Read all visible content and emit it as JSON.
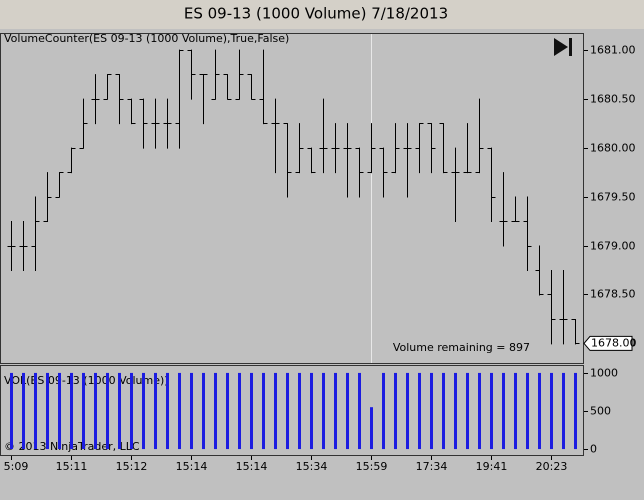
{
  "chart_data": [
    {
      "type": "ohlc",
      "title": "ES 09-13 (1000 Volume)  7/18/2013",
      "indicator": "VolumeCounter(ES 09-13 (1000 Volume),True,False)",
      "annotation": "Volume remaining = 897",
      "last_price": {
        "value": 1678,
        "label": "1678.00"
      },
      "color": "#000000",
      "categories": [
        "5:09",
        null,
        null,
        null,
        null,
        "15:11",
        null,
        null,
        null,
        null,
        "15:12",
        null,
        null,
        null,
        null,
        "15:14",
        null,
        null,
        null,
        null,
        "15:14",
        null,
        null,
        null,
        null,
        "15:34",
        null,
        null,
        null,
        null,
        "15:59",
        null,
        null,
        null,
        null,
        "17:34",
        null,
        null,
        null,
        null,
        "19:41",
        null,
        null,
        null,
        null,
        "20:23",
        null,
        null
      ],
      "open": [
        1679,
        1679,
        1679,
        1679.25,
        1679.5,
        1679.75,
        1680,
        1680.5,
        1680.5,
        1680.75,
        1680.5,
        1680.5,
        1680.25,
        1680.25,
        1680.25,
        1681,
        1680.75,
        1680.5,
        1680.75,
        1680.5,
        1680.75,
        1680.5,
        1680.25,
        1680.25,
        1679.75,
        1680,
        1680,
        1680,
        1680,
        1680,
        1679.75,
        1680,
        1679.75,
        1680,
        1680,
        1680.25,
        1680.25,
        1679.75,
        1679.75,
        1679.75,
        1680,
        1679.25,
        1679.25,
        1679.25,
        1678.75,
        1678.5,
        1678.25,
        1678.25
      ],
      "high": [
        1679.25,
        1679.25,
        1679.5,
        1679.75,
        1679.75,
        1680,
        1680.5,
        1680.75,
        1680.75,
        1680.75,
        1680.5,
        1680.5,
        1680.5,
        1680.5,
        1681,
        1681,
        1680.75,
        1681,
        1680.75,
        1681,
        1680.75,
        1681,
        1680.5,
        1680.25,
        1680.25,
        1680,
        1680.5,
        1680.25,
        1680.25,
        1680,
        1680.25,
        1680,
        1680.25,
        1680.25,
        1680.25,
        1680.25,
        1680.25,
        1680,
        1680.25,
        1680.5,
        1680,
        1679.75,
        1679.5,
        1679.5,
        1679,
        1678.75,
        1678.75,
        1678.25
      ],
      "low": [
        1678.75,
        1678.75,
        1678.75,
        1679.25,
        1679.5,
        1679.75,
        1680,
        1680.25,
        1680.5,
        1680.25,
        1680.25,
        1680,
        1680,
        1680,
        1680,
        1680.5,
        1680.25,
        1680.5,
        1680.5,
        1680.5,
        1680.5,
        1680.25,
        1679.75,
        1679.5,
        1679.75,
        1679.75,
        1679.75,
        1679.75,
        1679.5,
        1679.5,
        1679.75,
        1679.5,
        1679.75,
        1679.5,
        1679.75,
        1679.75,
        1679.75,
        1679.25,
        1679.75,
        1679.75,
        1679.25,
        1679,
        1679.25,
        1678.75,
        1678.5,
        1678,
        1678,
        1678
      ],
      "close": [
        1679,
        1679,
        1679.25,
        1679.5,
        1679.75,
        1680,
        1680.25,
        1680.5,
        1680.75,
        1680.5,
        1680.25,
        1680.25,
        1680.25,
        1680.25,
        1681,
        1680.75,
        1680.75,
        1680.75,
        1680.5,
        1680.75,
        1680.5,
        1680.25,
        1680.25,
        1679.75,
        1680,
        1679.75,
        1680,
        1680,
        1680,
        1679.75,
        1680,
        1679.75,
        1680,
        1680,
        1680.25,
        1680,
        1679.75,
        1679.75,
        1679.75,
        1680,
        1679.5,
        1679.25,
        1679.25,
        1679,
        1678.5,
        1678.25,
        1678.25,
        1678
      ],
      "ylim": [
        1677.8,
        1681.16
      ],
      "yticks": [
        {
          "value": 1678,
          "label": "1678.00"
        },
        {
          "value": 1678.5,
          "label": "1678.50"
        },
        {
          "value": 1679,
          "label": "1679.00"
        },
        {
          "value": 1679.5,
          "label": "1679.50"
        },
        {
          "value": 1680,
          "label": "1680.00"
        },
        {
          "value": 1680.5,
          "label": "1680.50"
        },
        {
          "value": 1681,
          "label": "1681.00"
        }
      ]
    },
    {
      "type": "bar",
      "title": "VOL(ES 09-13 (1000 Volume))",
      "copyright": "© 2013 NinjaTrader, LLC",
      "color": "#1c1ce0",
      "values": [
        1000,
        1000,
        1000,
        1000,
        1000,
        1000,
        1000,
        1000,
        1000,
        1000,
        1000,
        1000,
        1000,
        1000,
        1000,
        1000,
        1000,
        1000,
        1000,
        1000,
        1000,
        1000,
        1000,
        1000,
        1000,
        1000,
        1000,
        1000,
        1000,
        1000,
        550,
        1000,
        1000,
        1000,
        1000,
        1000,
        1000,
        1000,
        1000,
        1000,
        1000,
        1000,
        1000,
        1000,
        1000,
        1000,
        1000,
        1000
      ],
      "ylim": [
        -78,
        1091
      ],
      "yticks": [
        0,
        500,
        1000
      ]
    }
  ]
}
